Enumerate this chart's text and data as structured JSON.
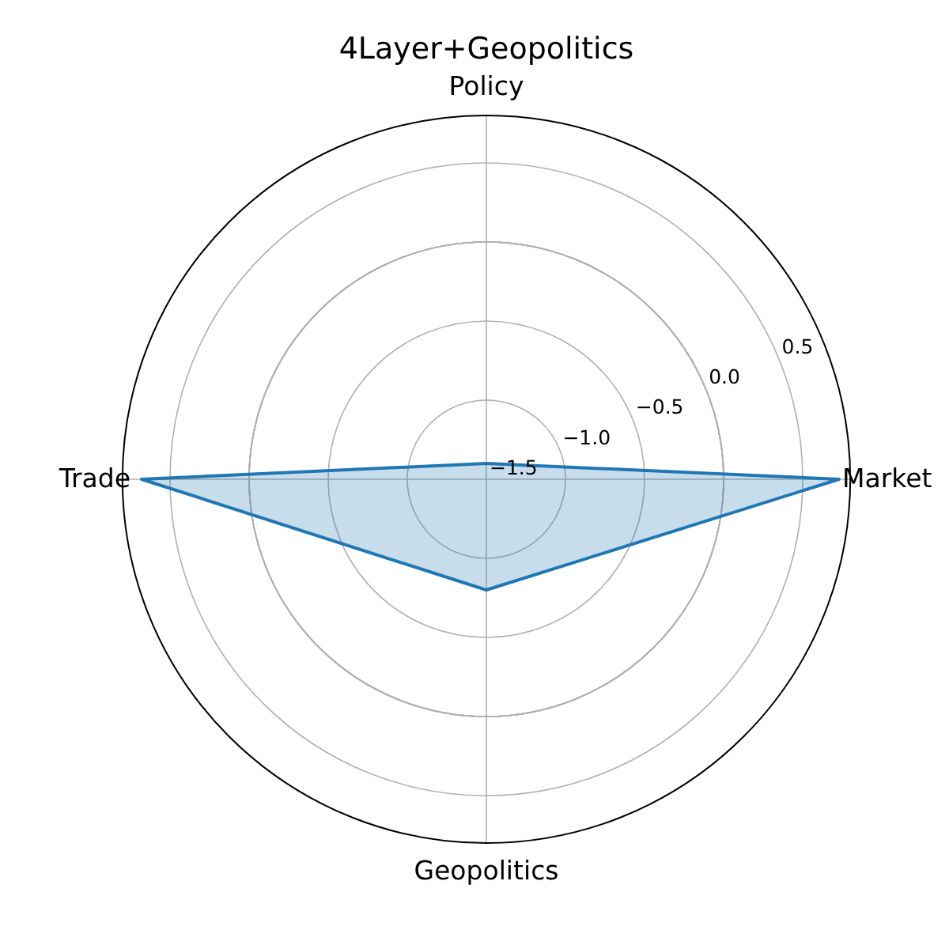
{
  "chart_data": {
    "type": "radar",
    "title": "4Layer+Geopolitics",
    "categories": [
      "Policy",
      "Market",
      "Geopolitics",
      "Trade"
    ],
    "series": [
      {
        "color": "#1f77b4",
        "values": [
          -1.4,
          0.73,
          -0.8,
          0.68
        ]
      }
    ],
    "ylim": [
      -1.5,
      0.8
    ],
    "yticks": [
      {
        "value": -1.5,
        "label": "−1.5"
      },
      {
        "value": -1.0,
        "label": "−1.0"
      },
      {
        "value": -0.5,
        "label": "−0.5"
      },
      {
        "value": 0,
        "label": "0.0"
      },
      0.5
    ],
    "grid": true
  }
}
